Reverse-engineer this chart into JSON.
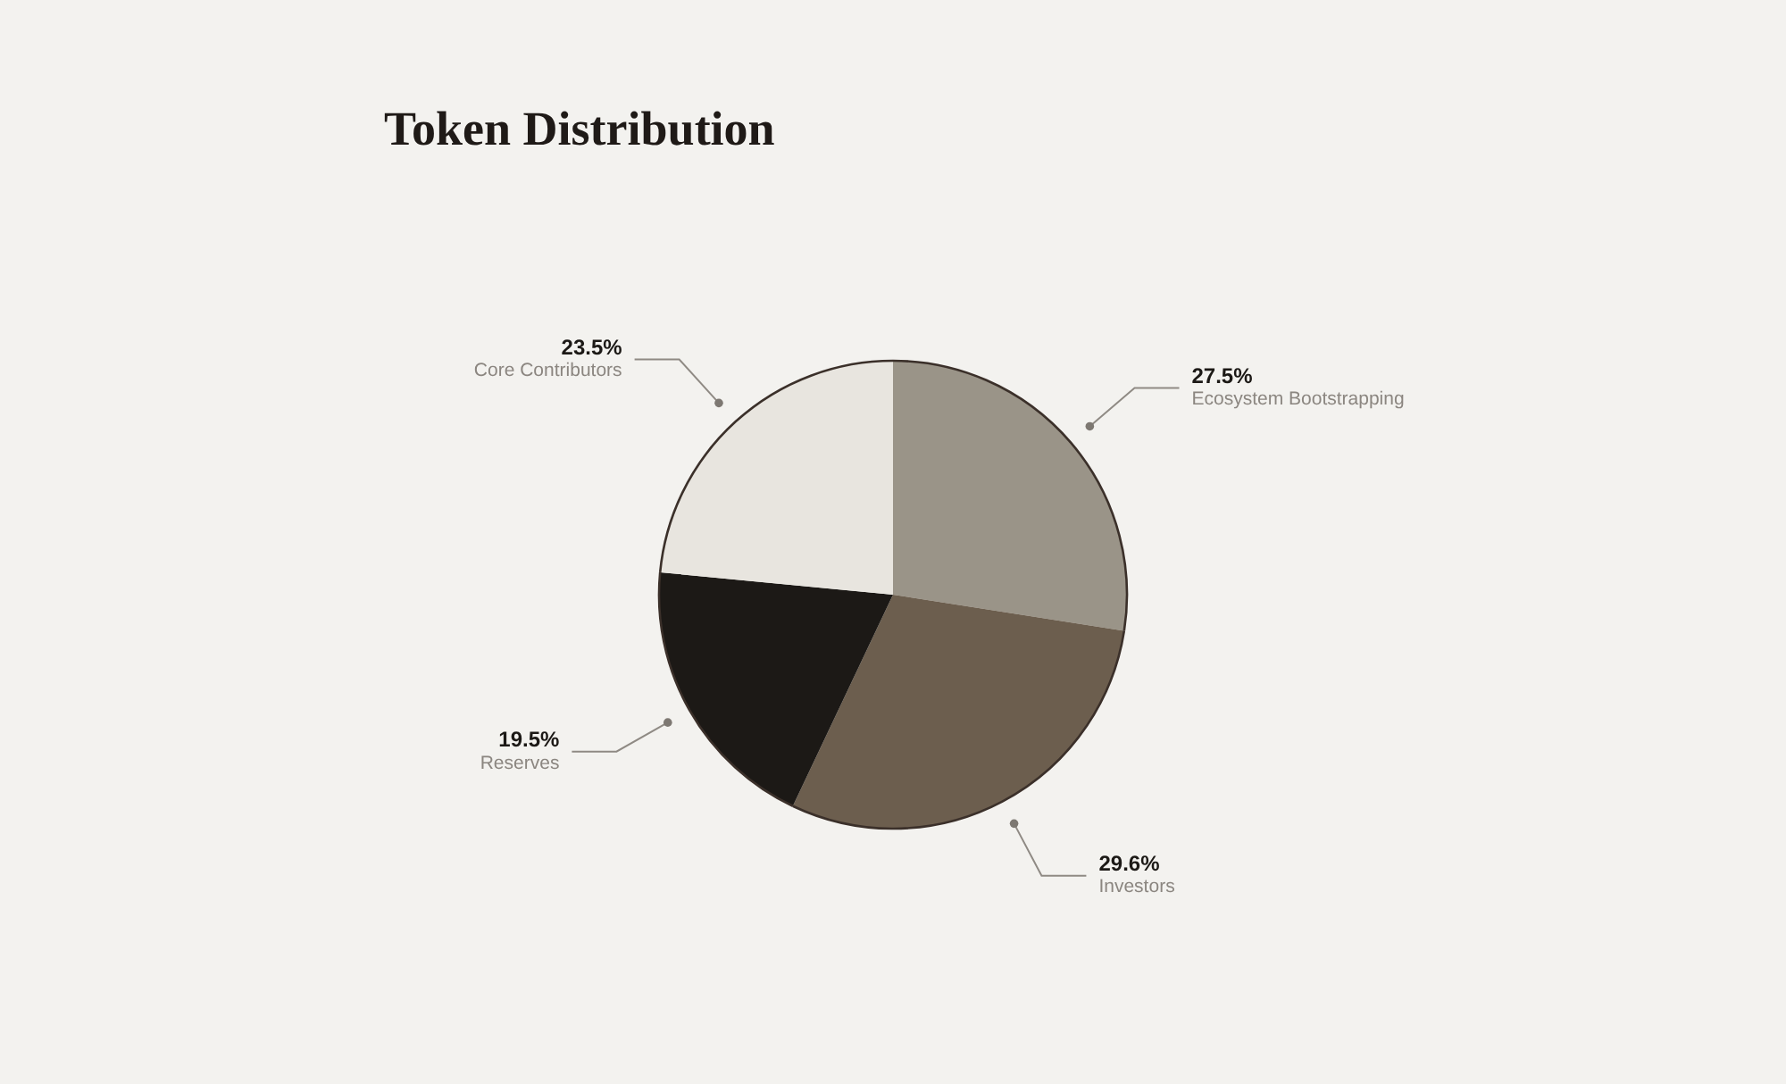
{
  "chart_data": {
    "type": "pie",
    "title": "Token Distribution",
    "categories": [
      "Ecosystem Bootstrapping",
      "Investors",
      "Reserves",
      "Core Contributors"
    ],
    "values": [
      27.5,
      29.6,
      19.5,
      23.5
    ],
    "colors": [
      "#9a9488",
      "#6c5e4e",
      "#1c1916",
      "#e8e5df"
    ],
    "value_labels": [
      "27.5%",
      "29.6%",
      "19.5%",
      "23.5%"
    ],
    "legend": false
  }
}
